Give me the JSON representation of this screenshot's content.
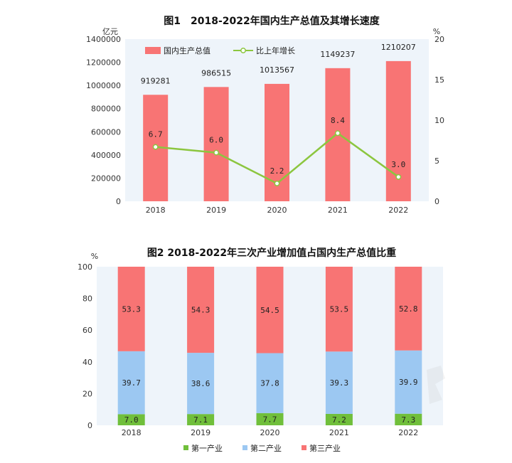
{
  "colors": {
    "gdp_bar": "#F87474",
    "growth_line": "#8CC63F",
    "plot_bg": "#EEF4FA",
    "primary": "#70BF3B",
    "secondary": "#9CC8F2",
    "tertiary": "#F87474"
  },
  "chart_data": [
    {
      "type": "bar",
      "title": "图1　2018-2022年国内生产总值及其增长速度",
      "ylabel_left": "亿元",
      "ylabel_right": "%",
      "categories": [
        "2018",
        "2019",
        "2020",
        "2021",
        "2022"
      ],
      "ylim_left": [
        0,
        1400000
      ],
      "ylim_right": [
        0,
        20
      ],
      "yticks_left": [
        "0",
        "200000",
        "400000",
        "600000",
        "800000",
        "1000000",
        "1200000",
        "1400000"
      ],
      "yticks_right": [
        "0",
        "5",
        "10",
        "15",
        "20"
      ],
      "legend_position": "top-left",
      "series": [
        {
          "name": "国内生产总值",
          "kind": "bar",
          "axis": "left",
          "values": [
            919281,
            986515,
            1013567,
            1149237,
            1210207
          ],
          "labels": [
            "919281",
            "986515",
            "1013567",
            "1149237",
            "1210207"
          ]
        },
        {
          "name": "比上年增长",
          "kind": "line",
          "axis": "right",
          "values": [
            6.7,
            6.0,
            2.2,
            8.4,
            3.0
          ],
          "labels": [
            "6.7",
            "6.0",
            "2.2",
            "8.4",
            "3.0"
          ]
        }
      ]
    },
    {
      "type": "bar",
      "stacked": true,
      "title": "图2 2018-2022年三次产业增加值占国内生产总值比重",
      "ylabel": "%",
      "categories": [
        "2018",
        "2019",
        "2020",
        "2021",
        "2022"
      ],
      "ylim": [
        0,
        100
      ],
      "yticks": [
        "0",
        "20",
        "40",
        "60",
        "80",
        "100"
      ],
      "legend_position": "bottom-center",
      "series": [
        {
          "name": "第一产业",
          "values": [
            7.0,
            7.1,
            7.7,
            7.2,
            7.3
          ],
          "labels": [
            "7.0",
            "7.1",
            "7.7",
            "7.2",
            "7.3"
          ]
        },
        {
          "name": "第二产业",
          "values": [
            39.7,
            38.6,
            37.8,
            39.3,
            39.9
          ],
          "labels": [
            "39.7",
            "38.6",
            "37.8",
            "39.3",
            "39.9"
          ]
        },
        {
          "name": "第三产业",
          "values": [
            53.3,
            54.3,
            54.5,
            53.5,
            52.8
          ],
          "labels": [
            "53.3",
            "54.3",
            "54.5",
            "53.5",
            "52.8"
          ]
        }
      ]
    }
  ]
}
